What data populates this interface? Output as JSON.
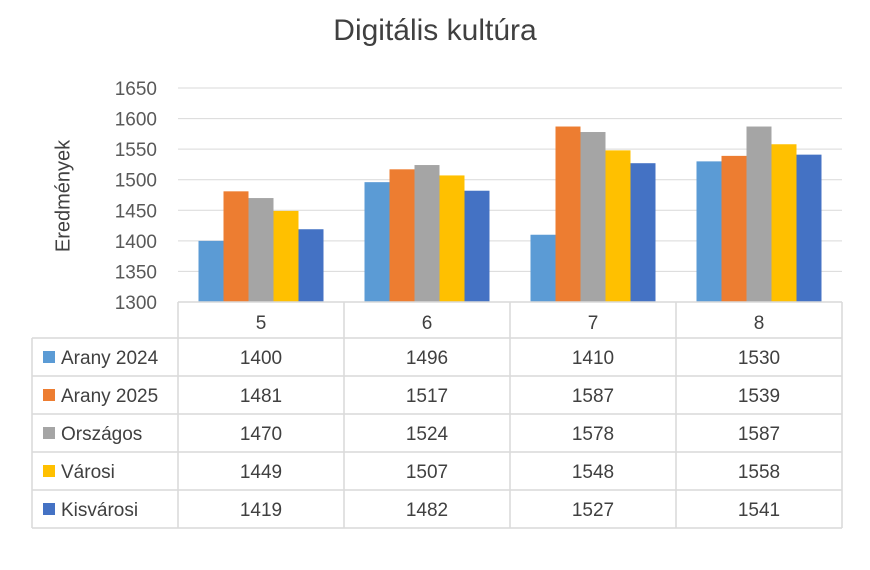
{
  "chart_data": {
    "type": "bar",
    "title": "Digitális kultúra",
    "xlabel": "",
    "ylabel": "Eredmények",
    "ylim": [
      1300,
      1650
    ],
    "yticks": [
      1300,
      1350,
      1400,
      1450,
      1500,
      1550,
      1600,
      1650
    ],
    "grid": true,
    "legend": "data-table-left",
    "categories": [
      "5",
      "6",
      "7",
      "8"
    ],
    "series": [
      {
        "name": "Arany 2024",
        "color": "#5B9BD5",
        "values": [
          1400,
          1496,
          1410,
          1530
        ]
      },
      {
        "name": "Arany 2025",
        "color": "#ED7D31",
        "values": [
          1481,
          1517,
          1587,
          1539
        ]
      },
      {
        "name": "Országos",
        "color": "#A5A5A5",
        "values": [
          1470,
          1524,
          1578,
          1587
        ]
      },
      {
        "name": "Városi",
        "color": "#FFC000",
        "values": [
          1449,
          1507,
          1548,
          1558
        ]
      },
      {
        "name": "Kisvárosi",
        "color": "#4472C4",
        "values": [
          1419,
          1482,
          1527,
          1541
        ]
      }
    ]
  }
}
